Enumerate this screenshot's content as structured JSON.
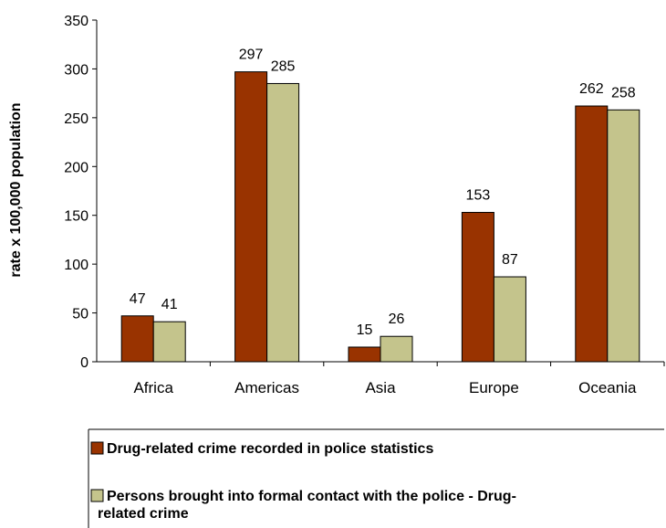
{
  "chart_data": {
    "type": "bar",
    "ylabel": "rate x 100,000 population",
    "xlabel": "",
    "ylim": [
      0,
      350
    ],
    "ytick_step": 50,
    "yticks": [
      "0",
      "50",
      "100",
      "150",
      "200",
      "250",
      "300",
      "350"
    ],
    "categories": [
      "Africa",
      "Americas",
      "Asia",
      "Europe",
      "Oceania"
    ],
    "series": [
      {
        "name": "Drug-related crime recorded in police statistics",
        "color": "#993300",
        "values": [
          47,
          297,
          15,
          153,
          262
        ]
      },
      {
        "name": "Persons brought into formal contact with the police - Drug-related crime",
        "color": "#c4c48c",
        "values": [
          41,
          285,
          26,
          87,
          258
        ]
      }
    ],
    "grid": false,
    "data_labels": true,
    "legend": {
      "placement": "bottom",
      "lines": [
        [
          "Drug-related crime recorded in police statistics"
        ],
        [
          "Persons brought into formal contact with the police - Drug-",
          "related crime"
        ]
      ]
    }
  }
}
